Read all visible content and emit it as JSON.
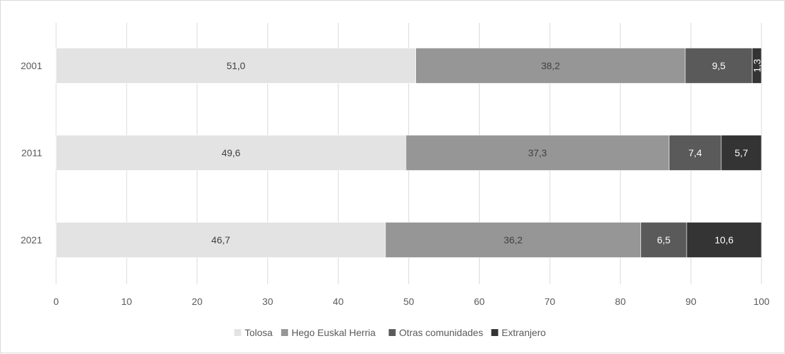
{
  "chart_data": {
    "type": "bar",
    "orientation": "horizontal",
    "stacked": true,
    "categories": [
      "2001",
      "2011",
      "2021"
    ],
    "series": [
      {
        "name": "Tolosa",
        "values": [
          51.0,
          49.6,
          46.7
        ],
        "labels": [
          "51,0",
          "49,6",
          "46,7"
        ],
        "color": "#e3e3e3",
        "label_color": "#404040"
      },
      {
        "name": "Hego Euskal Herria",
        "values": [
          38.2,
          37.3,
          36.2
        ],
        "labels": [
          "38,2",
          "37,3",
          "36,2"
        ],
        "color": "#969696",
        "label_color": "#404040"
      },
      {
        "name": "Otras comunidades",
        "values": [
          9.5,
          7.4,
          6.5
        ],
        "labels": [
          "9,5",
          "7,4",
          "6,5"
        ],
        "color": "#5a5a5a",
        "label_color": "#ffffff"
      },
      {
        "name": "Extranjero",
        "values": [
          1.3,
          5.7,
          10.6
        ],
        "labels": [
          "1,3",
          "5,7",
          "10,6"
        ],
        "color": "#343434",
        "label_color": "#ffffff"
      }
    ],
    "xlim": [
      0,
      100
    ],
    "xticks": [
      0,
      10,
      20,
      30,
      40,
      50,
      60,
      70,
      80,
      90,
      100
    ],
    "grid": "vertical",
    "legend_position": "bottom",
    "title": "",
    "xlabel": "",
    "ylabel": ""
  }
}
